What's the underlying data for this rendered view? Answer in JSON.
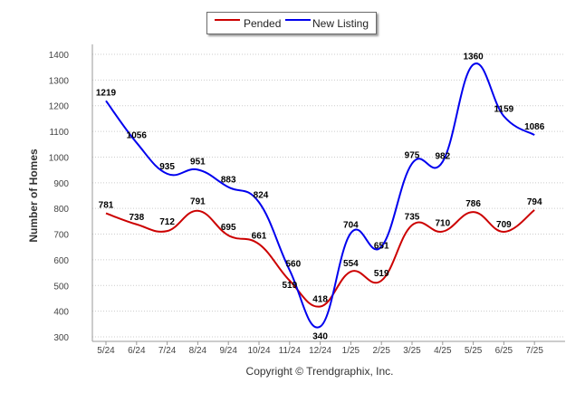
{
  "legend": {
    "pended_label": "Pended",
    "new_listing_label": "New Listing"
  },
  "footer": "Copyright © Trendgraphix, Inc.",
  "chart_data": {
    "type": "line",
    "ylabel": "Number of Homes",
    "xlabel": "",
    "ylim": [
      300,
      1400
    ],
    "yticks": [
      300,
      400,
      500,
      600,
      700,
      800,
      900,
      1000,
      1100,
      1200,
      1300,
      1400
    ],
    "grid": "horizontal dotted",
    "legend_position": "top-center",
    "categories": [
      "5/24",
      "6/24",
      "7/24",
      "8/24",
      "9/24",
      "10/24",
      "11/24",
      "12/24",
      "1/25",
      "2/25",
      "3/25",
      "4/25",
      "5/25",
      "6/25",
      "7/25"
    ],
    "series": [
      {
        "name": "Pended",
        "color": "#cc0000",
        "values": [
          781,
          738,
          712,
          791,
          695,
          661,
          519,
          418,
          554,
          519,
          735,
          710,
          786,
          709,
          794
        ]
      },
      {
        "name": "New Listing",
        "color": "#0000ee",
        "values": [
          1219,
          1056,
          935,
          951,
          883,
          824,
          560,
          340,
          704,
          651,
          975,
          982,
          1360,
          1159,
          1086
        ]
      }
    ]
  }
}
